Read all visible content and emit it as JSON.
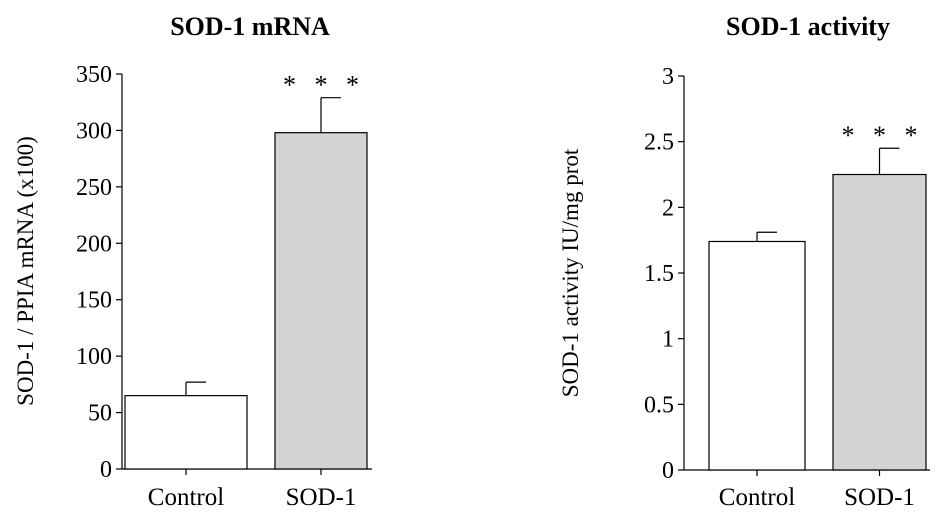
{
  "chart_data": [
    {
      "type": "bar",
      "title": "SOD-1  mRNA",
      "ylabel": "SOD-1 / PPIA mRNA (x100)",
      "xlabel": "",
      "categories": [
        "Control",
        "SOD-1"
      ],
      "values": [
        65,
        298
      ],
      "errors": [
        12,
        31
      ],
      "annotations": [
        "",
        "* * *"
      ],
      "ylim": [
        0,
        350
      ],
      "yticks": [
        0,
        50,
        100,
        150,
        200,
        250,
        300,
        350
      ],
      "ytick_labels": [
        "0",
        "50",
        "100",
        "150",
        "200",
        "250",
        "300",
        "350"
      ],
      "bar_colors": [
        "#ffffff",
        "#d3d3d3"
      ],
      "grid": false
    },
    {
      "type": "bar",
      "title": "SOD-1  activity",
      "ylabel": "SOD-1  activity IU/mg prot",
      "xlabel": "",
      "categories": [
        "Control",
        "SOD-1"
      ],
      "values": [
        1.74,
        2.25
      ],
      "errors": [
        0.07,
        0.2
      ],
      "annotations": [
        "",
        "* * *"
      ],
      "ylim": [
        0,
        3
      ],
      "yticks": [
        0,
        0.5,
        1,
        1.5,
        2,
        2.5,
        3
      ],
      "ytick_labels": [
        "0",
        "0.5",
        "1",
        "1.5",
        "2",
        "2.5",
        "3"
      ],
      "bar_colors": [
        "#ffffff",
        "#d3d3d3"
      ],
      "grid": false
    }
  ]
}
